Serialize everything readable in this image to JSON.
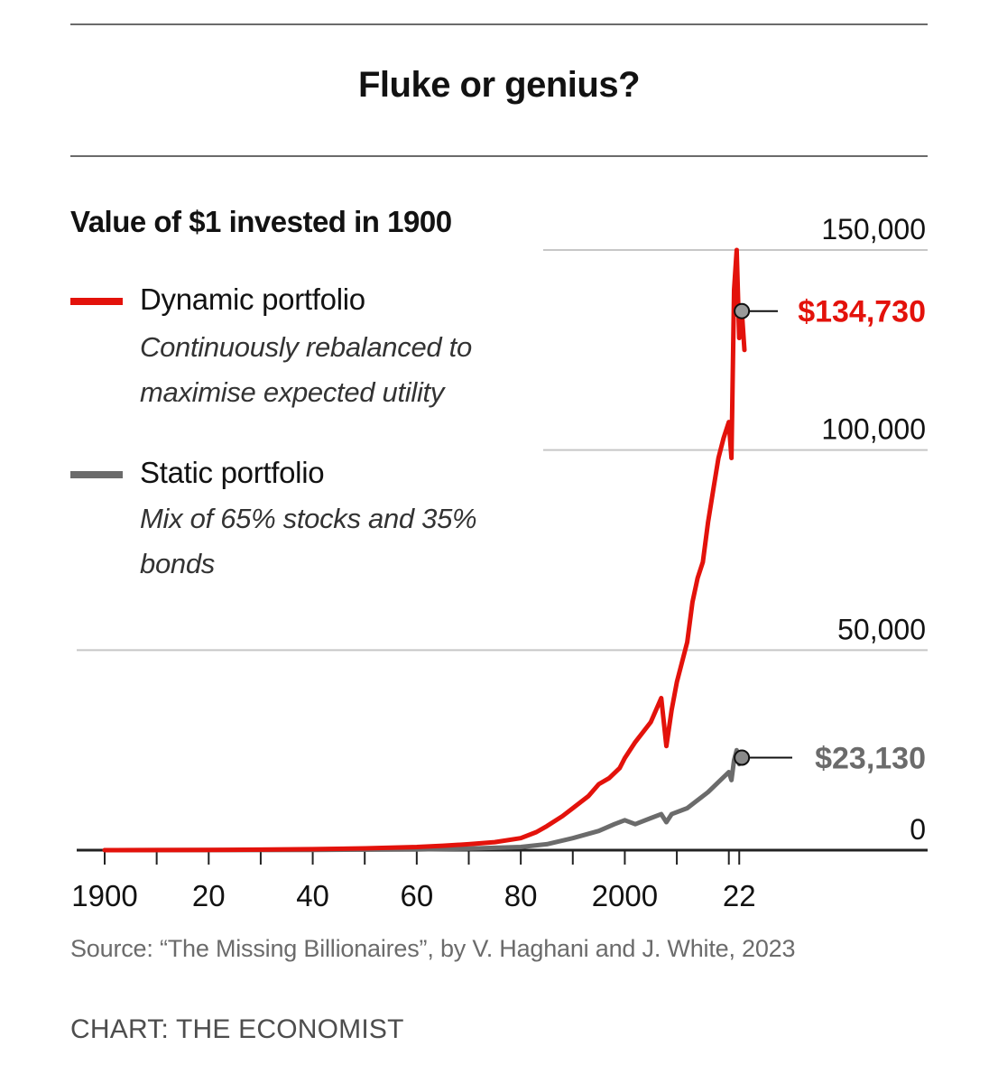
{
  "chart_data": {
    "type": "line",
    "title": "Fluke or genius?",
    "subtitle": "Value of $1 invested in 1900",
    "xlim": [
      1900,
      2023
    ],
    "ylim": [
      0,
      150000
    ],
    "x_ticks": [
      1900,
      1920,
      1940,
      1960,
      1980,
      2000,
      2020
    ],
    "x_tick_labels": [
      "1900",
      "20",
      "40",
      "60",
      "80",
      "2000",
      "22"
    ],
    "y_ticks": [
      0,
      50000,
      100000,
      150000
    ],
    "y_tick_labels": [
      "0",
      "50,000",
      "100,000",
      "150,000"
    ],
    "grid": true,
    "legend_position": "top-left",
    "series": [
      {
        "name": "Dynamic portfolio",
        "description": "Continuously rebalanced to maximise expected utility",
        "color": "#e3120b",
        "x": [
          1900,
          1910,
          1920,
          1930,
          1940,
          1950,
          1960,
          1965,
          1970,
          1975,
          1980,
          1983,
          1985,
          1988,
          1990,
          1993,
          1995,
          1997,
          1999,
          2000,
          2002,
          2005,
          2007,
          2008,
          2009,
          2010,
          2012,
          2013,
          2014,
          2015,
          2016,
          2017,
          2018,
          2019,
          2020,
          2020.5,
          2021,
          2021.5,
          2022,
          2022.5,
          2023
        ],
        "y": [
          1,
          20,
          60,
          130,
          250,
          450,
          800,
          1100,
          1500,
          2000,
          3000,
          4500,
          6000,
          8500,
          10500,
          13500,
          16500,
          18000,
          20500,
          23000,
          27000,
          32000,
          38000,
          26000,
          35000,
          42000,
          52000,
          62000,
          68000,
          72000,
          82000,
          90000,
          98000,
          103000,
          107000,
          98000,
          140000,
          150000,
          128000,
          134730,
          125000
        ]
      },
      {
        "name": "Static portfolio",
        "description": "Mix of 65% stocks and 35% bonds",
        "color": "#6b6b6b",
        "x": [
          1900,
          1920,
          1940,
          1960,
          1970,
          1980,
          1985,
          1990,
          1995,
          1998,
          2000,
          2002,
          2005,
          2007,
          2008,
          2009,
          2012,
          2014,
          2016,
          2018,
          2020,
          2020.5,
          2021,
          2021.5,
          2022,
          2022.5
        ],
        "y": [
          1,
          20,
          60,
          180,
          400,
          800,
          1500,
          3000,
          4800,
          6500,
          7500,
          6500,
          8000,
          9000,
          7000,
          9000,
          10500,
          12500,
          14500,
          17000,
          19500,
          17500,
          22500,
          25000,
          21500,
          23130
        ]
      }
    ],
    "annotations": [
      {
        "series": "Dynamic portfolio",
        "x": 2022.5,
        "y": 134730,
        "label": "$134,730"
      },
      {
        "series": "Static portfolio",
        "x": 2022.5,
        "y": 23130,
        "label": "$23,130"
      }
    ],
    "source": "Source: “The Missing Billionaires”, by V. Haghani and J. White, 2023",
    "credit": "CHART: THE ECONOMIST"
  },
  "colors": {
    "dynamic": "#e3120b",
    "static": "#6b6b6b",
    "grid": "#c7c7c7",
    "axis": "#222222",
    "text": "#121212"
  }
}
